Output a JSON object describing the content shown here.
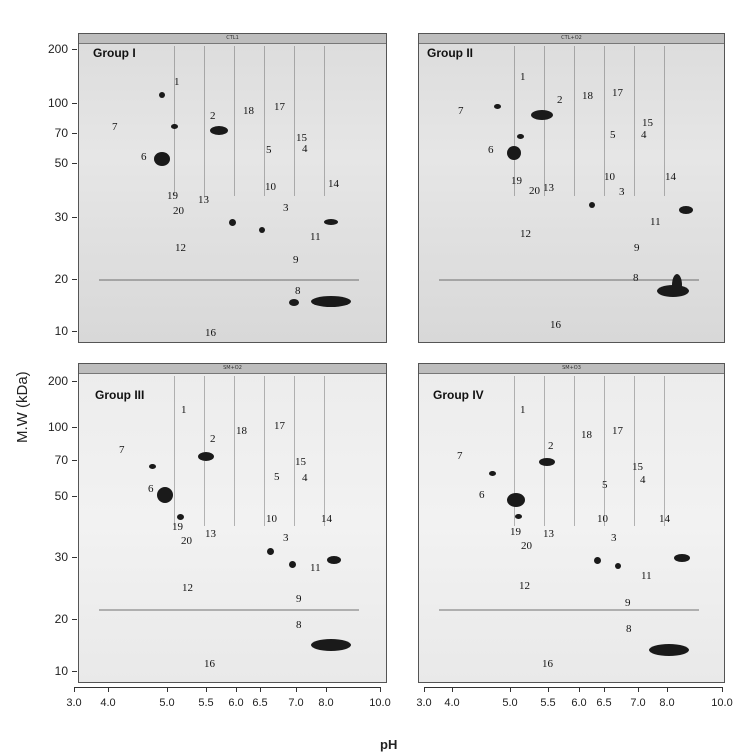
{
  "axis": {
    "ylabel": "M.W (kDa)",
    "xlabel": "pH",
    "y_ticks": [
      "200",
      "100",
      "70",
      "50",
      "30",
      "20",
      "10"
    ],
    "x_ticks": [
      "3.0",
      "4.0",
      "5.0",
      "5.5",
      "6.0",
      "6.5",
      "7.0",
      "8.0",
      "10.0"
    ]
  },
  "panels": [
    {
      "title": "Group I",
      "tab": "CTL1"
    },
    {
      "title": "Group II",
      "tab": "CTL+O2"
    },
    {
      "title": "Group III",
      "tab": "SM+O2"
    },
    {
      "title": "Group IV",
      "tab": "SM+O3"
    }
  ],
  "spot_labels": [
    "1",
    "2",
    "3",
    "4",
    "5",
    "6",
    "7",
    "8",
    "9",
    "10",
    "11",
    "12",
    "13",
    "14",
    "15",
    "16",
    "17",
    "18",
    "19",
    "20"
  ]
}
